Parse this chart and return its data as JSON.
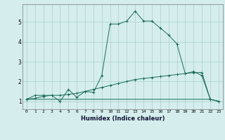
{
  "xlabel": "Humidex (Indice chaleur)",
  "bg_color": "#d5eeed",
  "grid_color": "#a8cdcc",
  "line_color": "#1a6b5a",
  "xlim": [
    -0.5,
    23.5
  ],
  "ylim": [
    0.6,
    5.9
  ],
  "yticks": [
    1,
    2,
    3,
    4,
    5
  ],
  "xticks": [
    0,
    1,
    2,
    3,
    4,
    5,
    6,
    7,
    8,
    9,
    10,
    11,
    12,
    13,
    14,
    15,
    16,
    17,
    18,
    19,
    20,
    21,
    22,
    23
  ],
  "series1_x": [
    0,
    1,
    2,
    3,
    4,
    5,
    6,
    7,
    8,
    9,
    10,
    11,
    12,
    13,
    14,
    15,
    16,
    17,
    18,
    19,
    20,
    21,
    22,
    23
  ],
  "series1_y": [
    1.1,
    1.3,
    1.3,
    1.3,
    1.0,
    1.6,
    1.2,
    1.5,
    1.45,
    2.3,
    4.9,
    4.9,
    5.05,
    5.55,
    5.05,
    5.05,
    4.7,
    4.35,
    3.9,
    2.4,
    2.5,
    2.3,
    1.1,
    1.0
  ],
  "series2_x": [
    0,
    1,
    2,
    3,
    4,
    5,
    6,
    7,
    8,
    9,
    10,
    11,
    12,
    13,
    14,
    15,
    16,
    17,
    18,
    19,
    20,
    21,
    22,
    23
  ],
  "series2_y": [
    1.1,
    1.15,
    1.25,
    1.3,
    1.3,
    1.35,
    1.4,
    1.5,
    1.6,
    1.7,
    1.8,
    1.9,
    2.0,
    2.1,
    2.15,
    2.2,
    2.25,
    2.3,
    2.35,
    2.4,
    2.45,
    2.45,
    1.1,
    1.0
  ],
  "series3_x": [
    0,
    1,
    2,
    3,
    4,
    5,
    6,
    7,
    8,
    9,
    10,
    11,
    12,
    13,
    14,
    15,
    16,
    17,
    18,
    19,
    20,
    21,
    22,
    23
  ],
  "series3_y": [
    1.1,
    1.1,
    1.1,
    1.1,
    1.1,
    1.1,
    1.1,
    1.1,
    1.1,
    1.1,
    1.1,
    1.1,
    1.1,
    1.1,
    1.1,
    1.1,
    1.1,
    1.1,
    1.1,
    1.1,
    1.1,
    1.1,
    1.1,
    1.0
  ]
}
